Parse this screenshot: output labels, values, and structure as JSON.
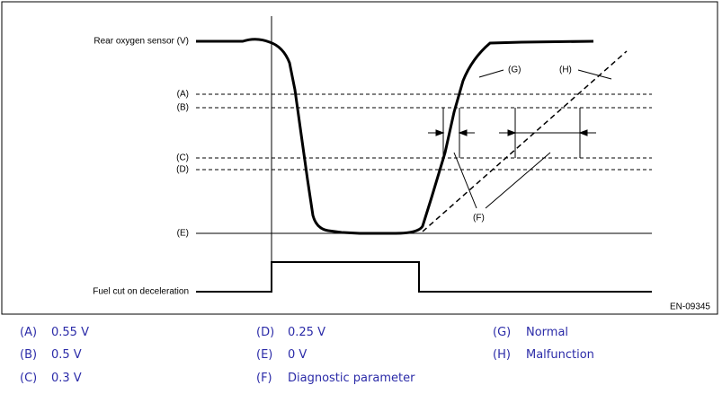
{
  "diagram": {
    "y_axis_label": "Rear oxygen sensor (V)",
    "levels": [
      "(A)",
      "(B)",
      "(C)",
      "(D)",
      "(E)"
    ],
    "signal_label": "Fuel cut on deceleration",
    "curve_labels": {
      "normal": "(G)",
      "malfunction": "(H)",
      "parameter": "(F)"
    },
    "figure_id": "EN-09345"
  },
  "legend": [
    {
      "key": "(A)",
      "text": "0.55 V"
    },
    {
      "key": "(B)",
      "text": "0.5 V"
    },
    {
      "key": "(C)",
      "text": "0.3 V"
    },
    {
      "key": "(D)",
      "text": "0.25 V"
    },
    {
      "key": "(E)",
      "text": "0 V"
    },
    {
      "key": "(F)",
      "text": "Diagnostic parameter"
    },
    {
      "key": "(G)",
      "text": "Normal"
    },
    {
      "key": "(H)",
      "text": "Malfunction"
    }
  ]
}
